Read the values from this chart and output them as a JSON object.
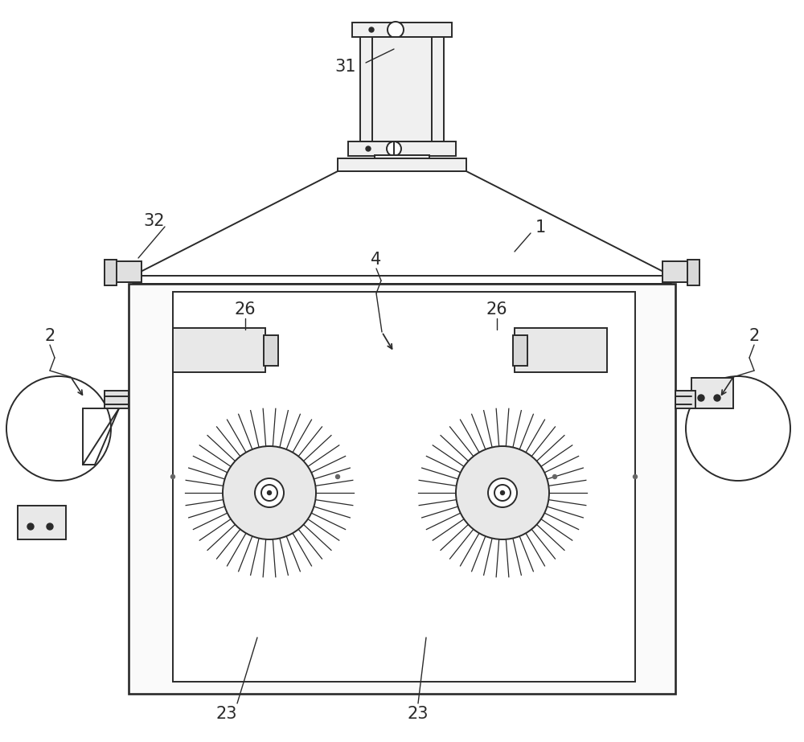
{
  "bg_color": "#ffffff",
  "line_color": "#2a2a2a",
  "lw": 1.4,
  "label_fontsize": 15,
  "figsize": [
    10.0,
    9.23
  ],
  "dpi": 100
}
